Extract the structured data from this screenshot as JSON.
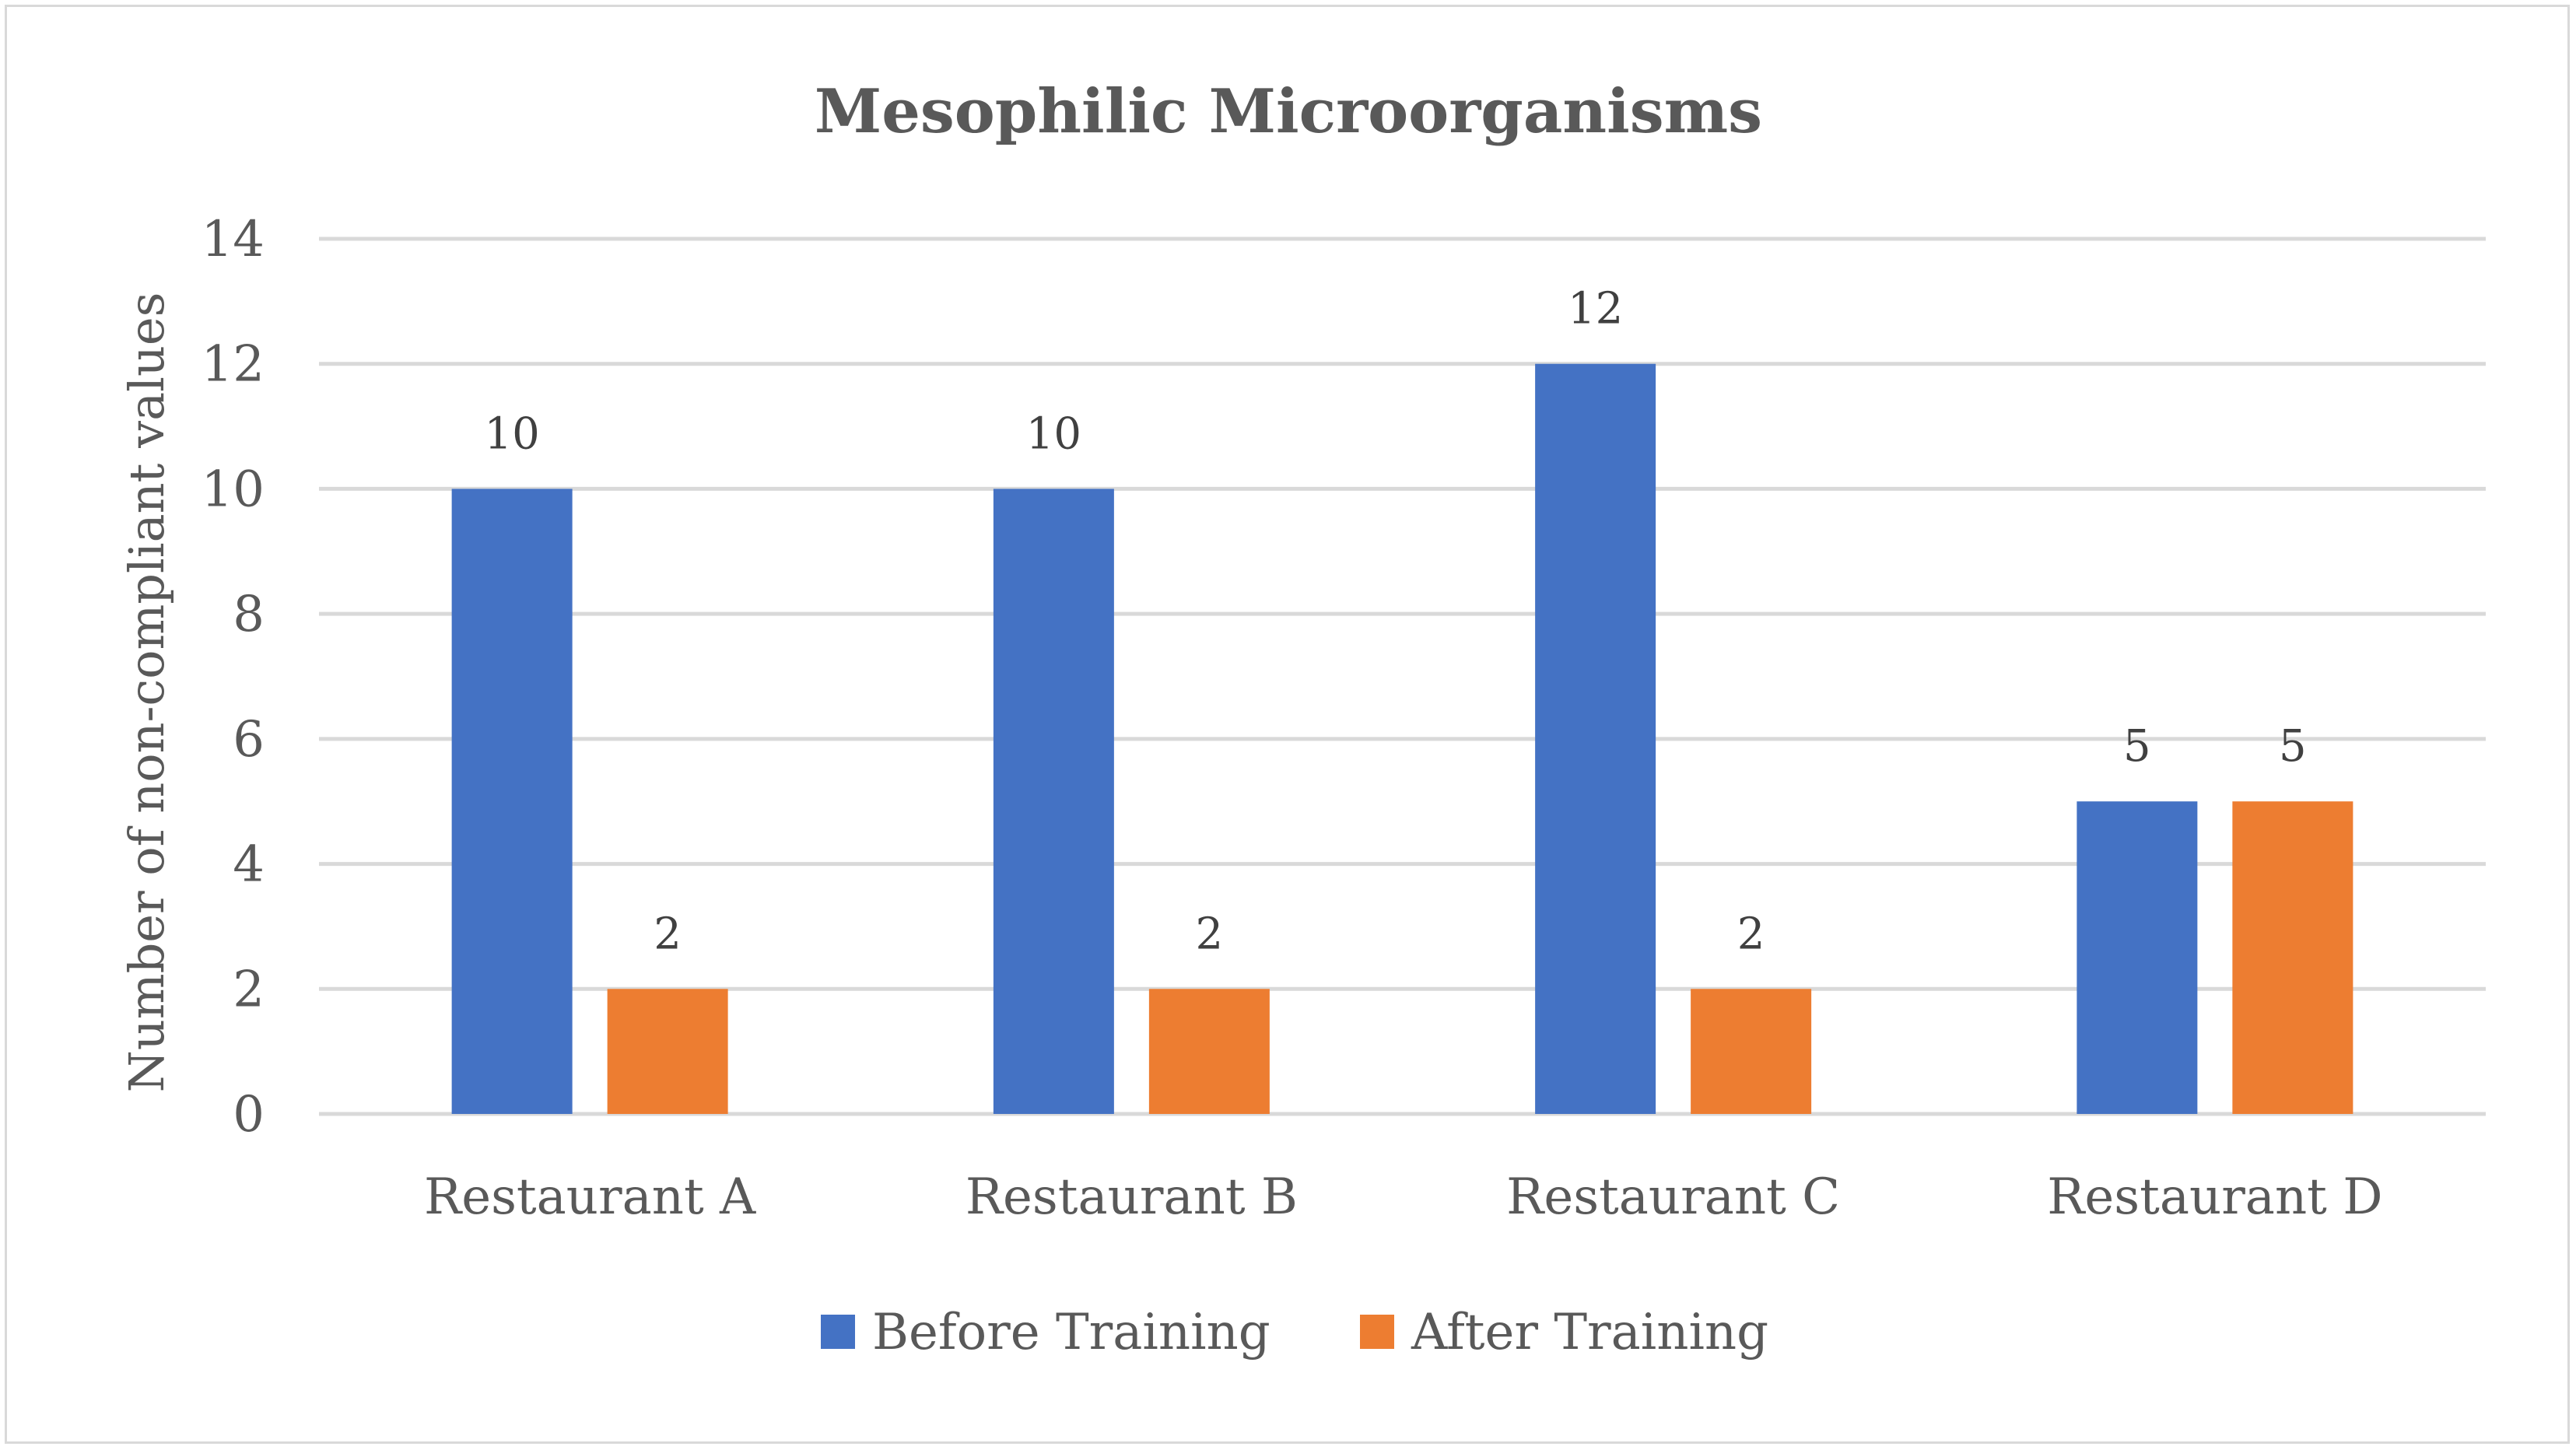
{
  "chart_data": {
    "type": "bar",
    "title": "Mesophilic Microorganisms",
    "xlabel": "",
    "ylabel": "Number of non-compliant values",
    "ylim": [
      0,
      14
    ],
    "yticks": [
      0,
      2,
      4,
      6,
      8,
      10,
      12,
      14
    ],
    "grid": true,
    "legend_position": "bottom",
    "categories": [
      "Restaurant A",
      "Restaurant B",
      "Restaurant C",
      "Restaurant D"
    ],
    "series": [
      {
        "name": "Before Training",
        "color": "#4472c4",
        "values": [
          10,
          10,
          12,
          5
        ]
      },
      {
        "name": "After Training",
        "color": "#ed7d31",
        "values": [
          2,
          2,
          2,
          5
        ]
      }
    ]
  }
}
